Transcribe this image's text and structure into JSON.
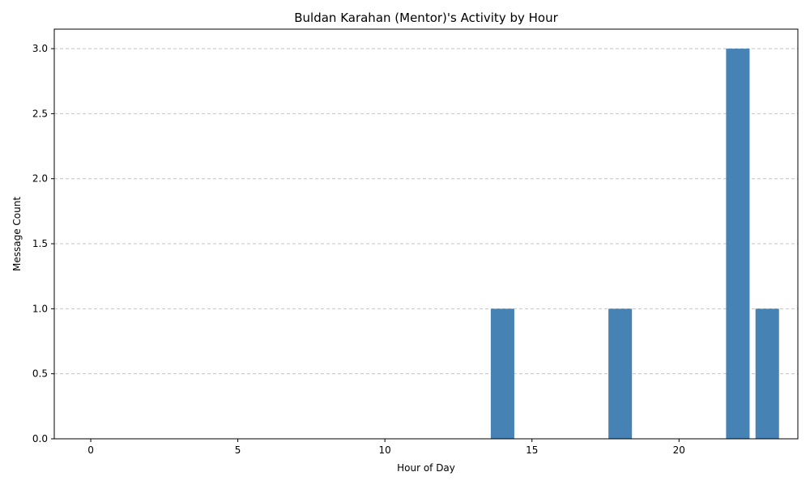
{
  "chart_data": {
    "type": "bar",
    "title": "Buldan Karahan (Mentor)'s Activity by Hour",
    "xlabel": "Hour of Day",
    "ylabel": "Message Count",
    "x": [
      0,
      1,
      2,
      3,
      4,
      5,
      6,
      7,
      8,
      9,
      10,
      11,
      12,
      13,
      14,
      15,
      16,
      17,
      18,
      19,
      20,
      21,
      22,
      23
    ],
    "values": [
      0,
      0,
      0,
      0,
      0,
      0,
      0,
      0,
      0,
      0,
      0,
      0,
      0,
      0,
      1,
      0,
      0,
      0,
      1,
      0,
      0,
      0,
      3,
      1
    ],
    "xticks": [
      "0",
      "5",
      "10",
      "15",
      "20"
    ],
    "xtick_values": [
      0,
      5,
      10,
      15,
      20
    ],
    "yticks": [
      "0.0",
      "0.5",
      "1.0",
      "1.5",
      "2.0",
      "2.5",
      "3.0"
    ],
    "ytick_values": [
      0,
      0.5,
      1,
      1.5,
      2,
      2.5,
      3
    ],
    "xlim": [
      -1.24,
      24.04
    ],
    "ylim": [
      0,
      3.15
    ],
    "grid": "y-dashed",
    "bar_color": "#4682b4"
  }
}
